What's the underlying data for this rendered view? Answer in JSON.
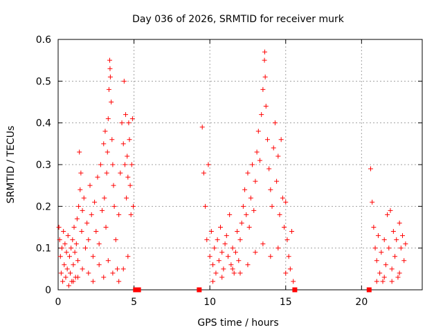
{
  "chart_data": {
    "type": "scatter",
    "title": "Day 036 of 2026, SRMTID for receiver murk",
    "xlabel": "GPS time / hours",
    "ylabel": "SRMTID / TECUs",
    "xlim": [
      0,
      24
    ],
    "ylim": [
      0,
      0.6
    ],
    "xticks": [
      0,
      5,
      10,
      15,
      20
    ],
    "yticks": [
      0,
      0.1,
      0.2,
      0.3,
      0.4,
      0.5,
      0.6
    ],
    "xtick_labels": [
      "0",
      "5",
      "10",
      "15",
      "20"
    ],
    "ytick_labels": [
      "0",
      "0.1",
      "0.2",
      "0.3",
      "0.4",
      "0.5",
      "0.6"
    ],
    "grid": true,
    "marker": "+",
    "color": "#ff0000",
    "series": [
      {
        "name": "SRMTID",
        "points": [
          [
            0.05,
            0.15
          ],
          [
            0.1,
            0.12
          ],
          [
            0.15,
            0.08
          ],
          [
            0.2,
            0.04
          ],
          [
            0.25,
            0.1
          ],
          [
            0.3,
            0.02
          ],
          [
            0.35,
            0.14
          ],
          [
            0.4,
            0.06
          ],
          [
            0.45,
            0.11
          ],
          [
            0.5,
            0.03
          ],
          [
            0.55,
            0.09
          ],
          [
            0.6,
            0.05
          ],
          [
            0.65,
            0.13
          ],
          [
            0.7,
            0.01
          ],
          [
            0.75,
            0.08
          ],
          [
            0.8,
            0.04
          ],
          [
            0.85,
            0.1
          ],
          [
            0.9,
            0.02
          ],
          [
            0.95,
            0.12
          ],
          [
            1.0,
            0.06
          ],
          [
            1.05,
            0.15
          ],
          [
            1.1,
            0.09
          ],
          [
            1.15,
            0.03
          ],
          [
            1.2,
            0.11
          ],
          [
            1.25,
            0.17
          ],
          [
            1.3,
            0.07
          ],
          [
            1.35,
            0.2
          ],
          [
            1.4,
            0.33
          ],
          [
            1.45,
            0.24
          ],
          [
            1.5,
            0.28
          ],
          [
            1.55,
            0.14
          ],
          [
            1.6,
            0.19
          ],
          [
            1.7,
            0.22
          ],
          [
            1.8,
            0.1
          ],
          [
            1.9,
            0.16
          ],
          [
            2.0,
            0.12
          ],
          [
            2.1,
            0.25
          ],
          [
            2.2,
            0.18
          ],
          [
            2.3,
            0.08
          ],
          [
            2.4,
            0.21
          ],
          [
            2.5,
            0.14
          ],
          [
            2.6,
            0.27
          ],
          [
            2.7,
            0.11
          ],
          [
            2.8,
            0.3
          ],
          [
            2.9,
            0.19
          ],
          [
            3.0,
            0.35
          ],
          [
            3.05,
            0.22
          ],
          [
            3.1,
            0.38
          ],
          [
            3.15,
            0.15
          ],
          [
            3.2,
            0.28
          ],
          [
            3.25,
            0.33
          ],
          [
            3.3,
            0.41
          ],
          [
            3.35,
            0.48
          ],
          [
            3.4,
            0.55
          ],
          [
            3.42,
            0.53
          ],
          [
            3.44,
            0.51
          ],
          [
            3.5,
            0.45
          ],
          [
            3.55,
            0.36
          ],
          [
            3.6,
            0.3
          ],
          [
            3.65,
            0.25
          ],
          [
            3.7,
            0.2
          ],
          [
            3.8,
            0.12
          ],
          [
            3.9,
            0.05
          ],
          [
            4.0,
            0.18
          ],
          [
            4.1,
            0.28
          ],
          [
            4.2,
            0.4
          ],
          [
            4.3,
            0.35
          ],
          [
            4.35,
            0.5
          ],
          [
            4.4,
            0.3
          ],
          [
            4.45,
            0.42
          ],
          [
            4.5,
            0.22
          ],
          [
            4.55,
            0.32
          ],
          [
            4.6,
            0.27
          ],
          [
            4.65,
            0.4
          ],
          [
            4.7,
            0.36
          ],
          [
            4.75,
            0.25
          ],
          [
            4.8,
            0.18
          ],
          [
            4.85,
            0.3
          ],
          [
            4.9,
            0.41
          ],
          [
            4.95,
            0.2
          ],
          [
            1.0,
            0.02
          ],
          [
            1.3,
            0.03
          ],
          [
            1.6,
            0.05
          ],
          [
            2.0,
            0.04
          ],
          [
            2.3,
            0.02
          ],
          [
            2.7,
            0.06
          ],
          [
            3.0,
            0.03
          ],
          [
            3.3,
            0.07
          ],
          [
            3.6,
            0.04
          ],
          [
            4.0,
            0.02
          ],
          [
            4.3,
            0.05
          ],
          [
            4.6,
            0.08
          ],
          [
            9.5,
            0.39
          ],
          [
            9.6,
            0.28
          ],
          [
            9.7,
            0.2
          ],
          [
            9.8,
            0.12
          ],
          [
            9.9,
            0.3
          ],
          [
            10.0,
            0.08
          ],
          [
            10.1,
            0.14
          ],
          [
            10.2,
            0.06
          ],
          [
            10.3,
            0.1
          ],
          [
            10.4,
            0.04
          ],
          [
            10.5,
            0.12
          ],
          [
            10.6,
            0.07
          ],
          [
            10.7,
            0.15
          ],
          [
            10.8,
            0.09
          ],
          [
            10.9,
            0.05
          ],
          [
            11.0,
            0.11
          ],
          [
            11.1,
            0.13
          ],
          [
            11.2,
            0.08
          ],
          [
            11.3,
            0.18
          ],
          [
            11.4,
            0.06
          ],
          [
            11.5,
            0.1
          ],
          [
            11.6,
            0.04
          ],
          [
            11.7,
            0.09
          ],
          [
            11.8,
            0.14
          ],
          [
            11.9,
            0.07
          ],
          [
            12.0,
            0.12
          ],
          [
            12.1,
            0.16
          ],
          [
            12.2,
            0.2
          ],
          [
            12.3,
            0.24
          ],
          [
            12.4,
            0.18
          ],
          [
            12.5,
            0.28
          ],
          [
            12.6,
            0.15
          ],
          [
            12.7,
            0.22
          ],
          [
            12.8,
            0.3
          ],
          [
            12.9,
            0.19
          ],
          [
            13.0,
            0.26
          ],
          [
            13.1,
            0.33
          ],
          [
            13.2,
            0.38
          ],
          [
            13.3,
            0.31
          ],
          [
            13.4,
            0.42
          ],
          [
            13.5,
            0.48
          ],
          [
            13.6,
            0.55
          ],
          [
            13.62,
            0.57
          ],
          [
            13.65,
            0.51
          ],
          [
            13.7,
            0.44
          ],
          [
            13.8,
            0.36
          ],
          [
            13.9,
            0.29
          ],
          [
            14.0,
            0.24
          ],
          [
            14.1,
            0.2
          ],
          [
            14.2,
            0.34
          ],
          [
            14.3,
            0.4
          ],
          [
            14.4,
            0.26
          ],
          [
            14.5,
            0.32
          ],
          [
            14.6,
            0.18
          ],
          [
            14.7,
            0.36
          ],
          [
            14.8,
            0.22
          ],
          [
            14.9,
            0.15
          ],
          [
            15.0,
            0.21
          ],
          [
            15.1,
            0.12
          ],
          [
            15.2,
            0.08
          ],
          [
            15.3,
            0.05
          ],
          [
            15.4,
            0.14
          ],
          [
            15.5,
            0.02
          ],
          [
            10.2,
            0.02
          ],
          [
            10.8,
            0.03
          ],
          [
            11.5,
            0.05
          ],
          [
            12.0,
            0.04
          ],
          [
            12.5,
            0.06
          ],
          [
            13.0,
            0.09
          ],
          [
            13.5,
            0.11
          ],
          [
            14.0,
            0.08
          ],
          [
            14.5,
            0.1
          ],
          [
            15.0,
            0.04
          ],
          [
            20.6,
            0.29
          ],
          [
            20.7,
            0.21
          ],
          [
            20.8,
            0.15
          ],
          [
            20.9,
            0.1
          ],
          [
            21.0,
            0.07
          ],
          [
            21.1,
            0.13
          ],
          [
            21.2,
            0.04
          ],
          [
            21.3,
            0.09
          ],
          [
            21.4,
            0.02
          ],
          [
            21.5,
            0.12
          ],
          [
            21.6,
            0.06
          ],
          [
            21.7,
            0.18
          ],
          [
            21.8,
            0.1
          ],
          [
            21.9,
            0.19
          ],
          [
            22.0,
            0.05
          ],
          [
            22.1,
            0.14
          ],
          [
            22.2,
            0.08
          ],
          [
            22.3,
            0.12
          ],
          [
            22.4,
            0.03
          ],
          [
            22.5,
            0.16
          ],
          [
            22.6,
            0.1
          ],
          [
            22.7,
            0.13
          ],
          [
            22.8,
            0.07
          ],
          [
            22.9,
            0.11
          ],
          [
            21.0,
            0.02
          ],
          [
            21.5,
            0.03
          ],
          [
            22.0,
            0.02
          ],
          [
            22.5,
            0.04
          ]
        ]
      }
    ],
    "zero_points": [
      [
        5.1,
        0.0
      ],
      [
        5.2,
        0.0
      ],
      [
        5.3,
        0.0
      ],
      [
        9.3,
        0.0
      ],
      [
        15.6,
        0.0
      ],
      [
        20.5,
        0.0
      ]
    ]
  }
}
